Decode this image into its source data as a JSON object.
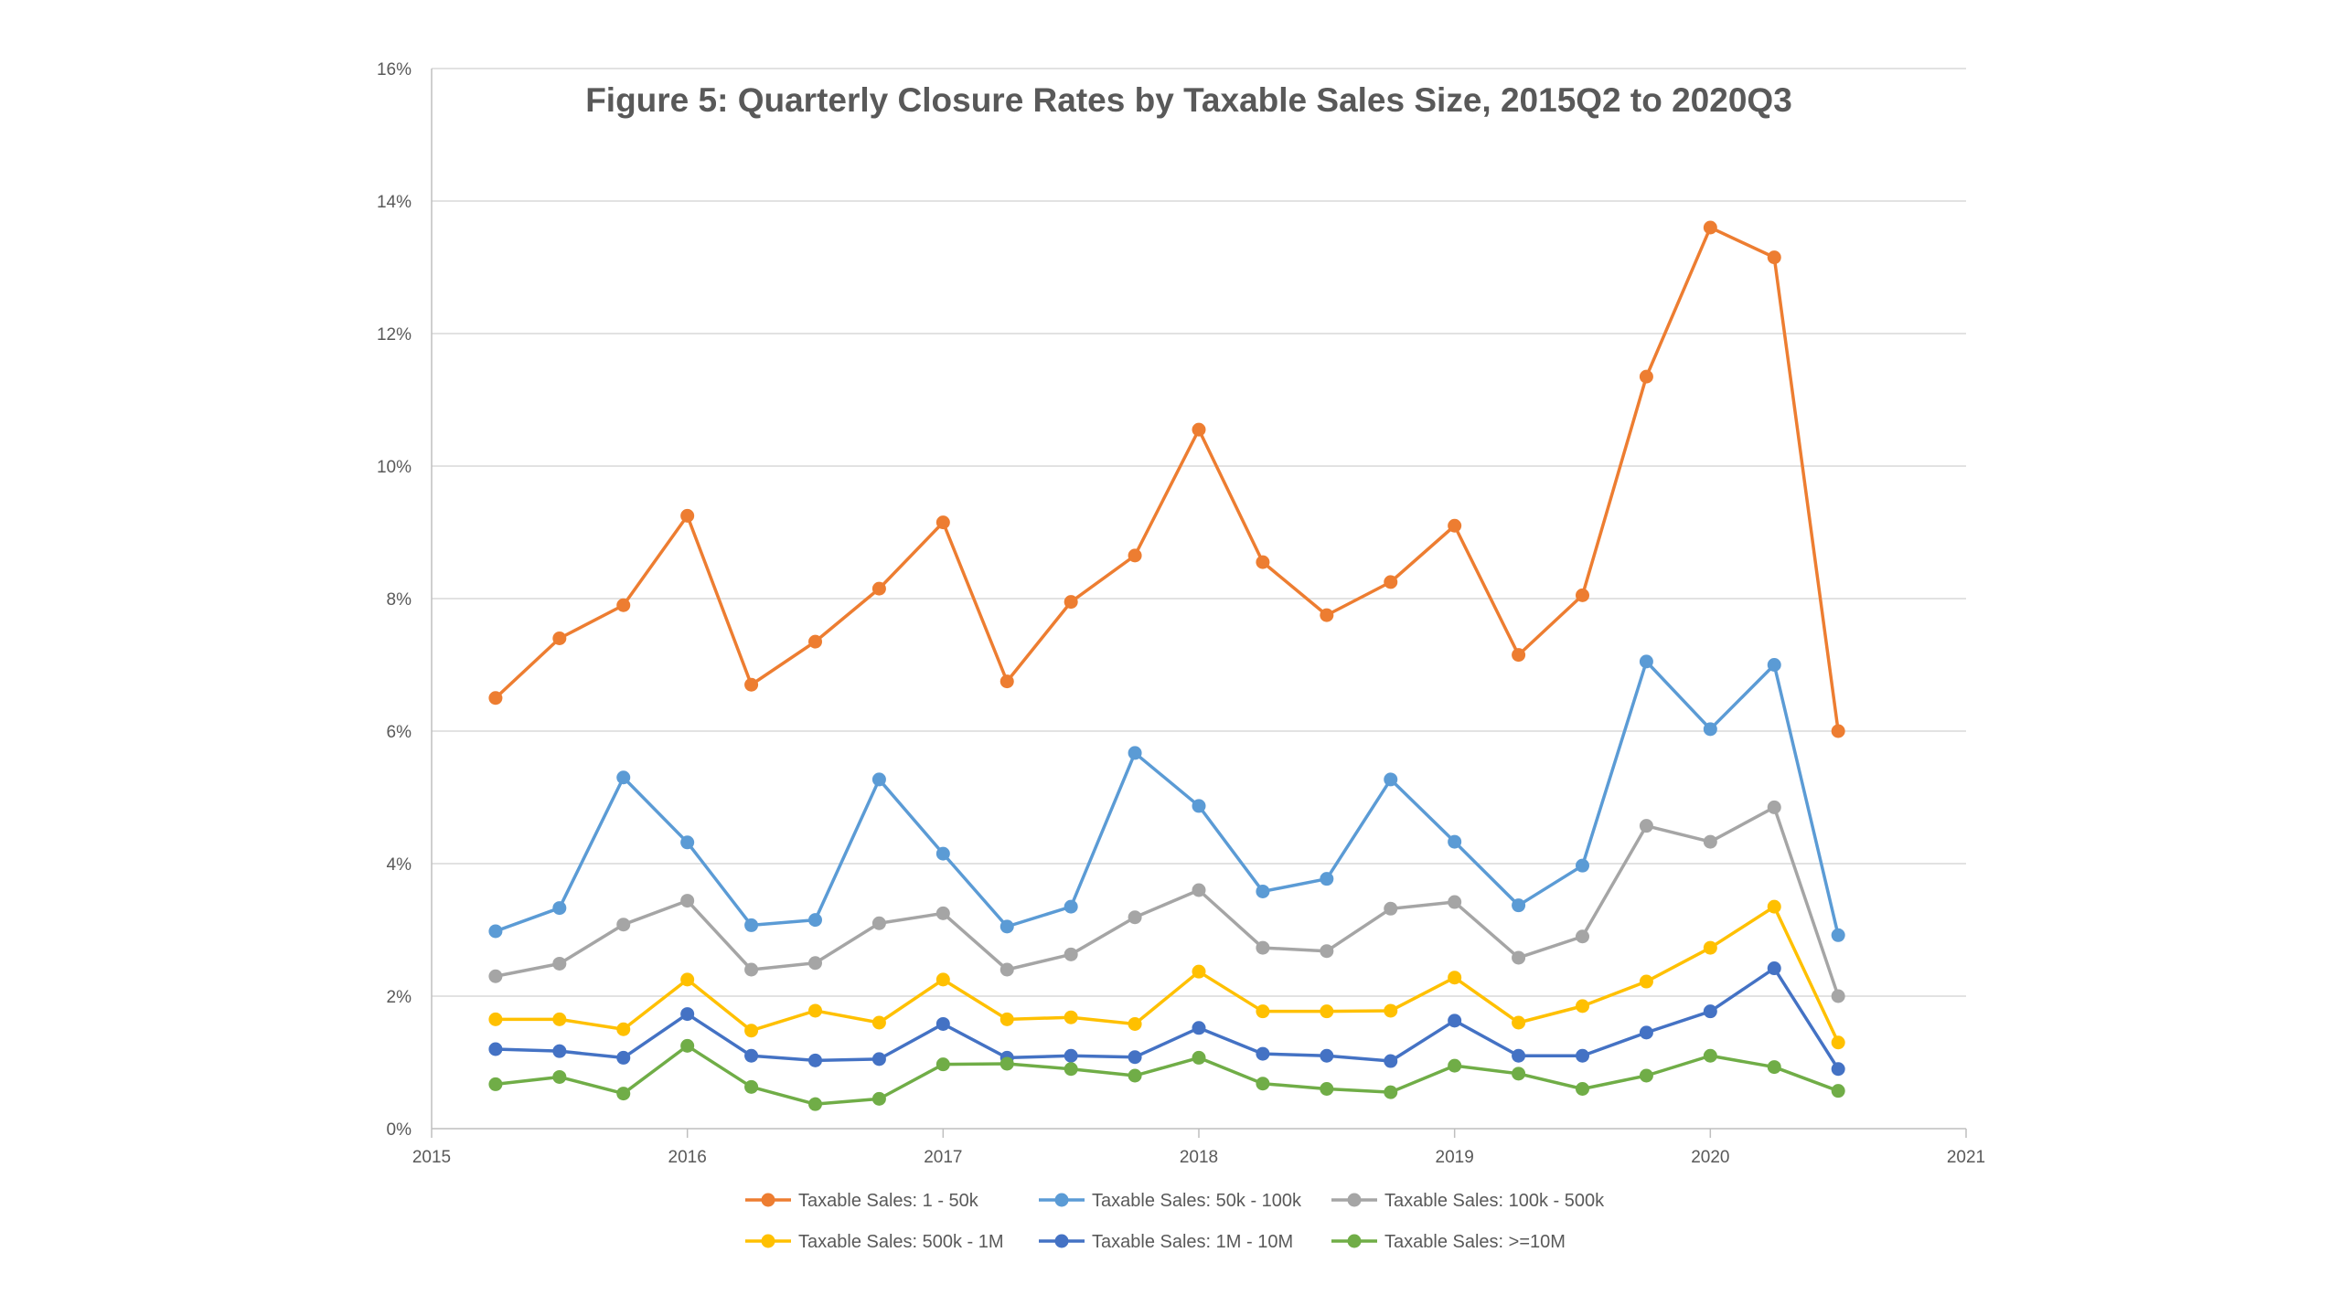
{
  "chart_data": {
    "type": "line",
    "title": "Figure 5: Quarterly Closure Rates by Taxable Sales Size, 2015Q2 to 2020Q3",
    "xlabel": "",
    "ylabel": "",
    "xlim": [
      2015,
      2021
    ],
    "ylim": [
      0,
      0.16
    ],
    "x_ticks": [
      2015,
      2016,
      2017,
      2018,
      2019,
      2020,
      2021
    ],
    "x_tick_labels": [
      "2015",
      "2016",
      "2017",
      "2018",
      "2019",
      "2020",
      "2021"
    ],
    "y_ticks": [
      0,
      0.02,
      0.04,
      0.06,
      0.08,
      0.1,
      0.12,
      0.14,
      0.16
    ],
    "y_tick_labels": [
      "0%",
      "2%",
      "4%",
      "6%",
      "8%",
      "10%",
      "12%",
      "14%",
      "16%"
    ],
    "grid": "horizontal",
    "legend_position": "bottom",
    "x": [
      2015.25,
      2015.5,
      2015.75,
      2016.0,
      2016.25,
      2016.5,
      2016.75,
      2017.0,
      2017.25,
      2017.5,
      2017.75,
      2018.0,
      2018.25,
      2018.5,
      2018.75,
      2019.0,
      2019.25,
      2019.5,
      2019.75,
      2020.0,
      2020.25,
      2020.5
    ],
    "series": [
      {
        "name": "Taxable Sales: 1 - 50k",
        "color": "#ED7D31",
        "values": [
          0.065,
          0.074,
          0.079,
          0.0925,
          0.067,
          0.0735,
          0.0815,
          0.0915,
          0.0675,
          0.0795,
          0.0865,
          0.1055,
          0.0855,
          0.0775,
          0.0825,
          0.091,
          0.0715,
          0.0805,
          0.1135,
          0.136,
          0.1315,
          0.06
        ]
      },
      {
        "name": "Taxable Sales: 50k - 100k",
        "color": "#5B9BD5",
        "values": [
          0.0298,
          0.0333,
          0.053,
          0.0432,
          0.0307,
          0.0315,
          0.0527,
          0.0415,
          0.0305,
          0.0335,
          0.0567,
          0.0487,
          0.0358,
          0.0377,
          0.0527,
          0.0433,
          0.0337,
          0.0397,
          0.0705,
          0.0603,
          0.07,
          0.0292
        ]
      },
      {
        "name": "Taxable Sales: 100k - 500k",
        "color": "#A5A5A5",
        "values": [
          0.023,
          0.0249,
          0.0308,
          0.0344,
          0.024,
          0.025,
          0.031,
          0.0325,
          0.024,
          0.0263,
          0.0319,
          0.036,
          0.0273,
          0.0268,
          0.0332,
          0.0342,
          0.0258,
          0.029,
          0.0457,
          0.0433,
          0.0485,
          0.02
        ]
      },
      {
        "name": "Taxable Sales: 500k - 1M",
        "color": "#FFC000",
        "values": [
          0.0165,
          0.0165,
          0.015,
          0.0225,
          0.0148,
          0.0178,
          0.016,
          0.0225,
          0.0165,
          0.0168,
          0.0158,
          0.0237,
          0.0177,
          0.0177,
          0.0178,
          0.0228,
          0.016,
          0.0185,
          0.0222,
          0.0273,
          0.0335,
          0.013
        ]
      },
      {
        "name": "Taxable Sales: 1M - 10M",
        "color": "#4472C4",
        "values": [
          0.012,
          0.0117,
          0.0107,
          0.0173,
          0.011,
          0.0103,
          0.0105,
          0.0158,
          0.0107,
          0.011,
          0.0108,
          0.0152,
          0.0113,
          0.011,
          0.0102,
          0.0163,
          0.011,
          0.011,
          0.0145,
          0.0177,
          0.0242,
          0.009
        ]
      },
      {
        "name": "Taxable Sales: >=10M",
        "color": "#70AD47",
        "values": [
          0.0067,
          0.0078,
          0.0053,
          0.0125,
          0.0063,
          0.0037,
          0.0045,
          0.0097,
          0.0098,
          0.009,
          0.008,
          0.0107,
          0.0068,
          0.006,
          0.0055,
          0.0095,
          0.0083,
          0.006,
          0.008,
          0.011,
          0.0093,
          0.0057
        ]
      }
    ]
  },
  "colors": {
    "axis": "#BFBFBF",
    "gridline": "#D9D9D9",
    "text": "#595959"
  }
}
